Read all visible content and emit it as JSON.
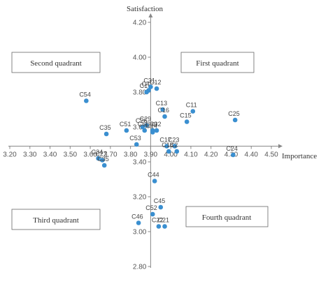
{
  "chart_data": {
    "type": "scatter",
    "title": "",
    "xlabel": "Importance",
    "ylabel": "Satisfaction",
    "xlim": [
      3.2,
      4.5
    ],
    "ylim": [
      2.8,
      4.2
    ],
    "x_cross": 3.9,
    "y_cross": 3.49,
    "x_ticks": [
      "3.20",
      "3.30",
      "3.40",
      "3.50",
      "3.60",
      "3.70",
      "3.80",
      "3.90",
      "4.00",
      "4.10",
      "4.20",
      "4.30",
      "4.40",
      "4.50"
    ],
    "y_ticks": [
      "4.20",
      "4.00",
      "3.80",
      "3.60",
      "3.40",
      "3.20",
      "3.00",
      "2.80"
    ],
    "grid": false,
    "point_color": "#3a8fd0",
    "quadrants": [
      {
        "label": "First quadrant"
      },
      {
        "label": "Second quadrant"
      },
      {
        "label": "Third quadrant"
      },
      {
        "label": "Fourth quadrant"
      }
    ],
    "points": [
      {
        "label": "C54",
        "x": 3.58,
        "y": 3.75
      },
      {
        "label": "C31",
        "x": 3.9,
        "y": 3.83
      },
      {
        "label": "C12",
        "x": 3.93,
        "y": 3.82
      },
      {
        "label": "C4",
        "x": 3.89,
        "y": 3.81
      },
      {
        "label": "C1",
        "x": 3.88,
        "y": 3.8
      },
      {
        "label": "C13",
        "x": 3.96,
        "y": 3.7
      },
      {
        "label": "C16",
        "x": 3.97,
        "y": 3.66
      },
      {
        "label": "C11",
        "x": 4.11,
        "y": 3.69
      },
      {
        "label": "C15",
        "x": 4.08,
        "y": 3.63
      },
      {
        "label": "C25",
        "x": 4.32,
        "y": 3.64
      },
      {
        "label": "C35",
        "x": 3.68,
        "y": 3.56
      },
      {
        "label": "C51",
        "x": 3.78,
        "y": 3.58
      },
      {
        "label": "C26",
        "x": 3.86,
        "y": 3.6
      },
      {
        "label": "C29",
        "x": 3.88,
        "y": 3.61
      },
      {
        "label": "C30",
        "x": 3.91,
        "y": 3.58
      },
      {
        "label": "C6",
        "x": 3.87,
        "y": 3.58
      },
      {
        "label": "C14",
        "x": 3.91,
        "y": 3.57
      },
      {
        "label": "C32",
        "x": 3.93,
        "y": 3.58
      },
      {
        "label": "C53",
        "x": 3.83,
        "y": 3.5
      },
      {
        "label": "C17",
        "x": 3.98,
        "y": 3.49
      },
      {
        "label": "C23",
        "x": 4.02,
        "y": 3.49
      },
      {
        "label": "C18",
        "x": 3.99,
        "y": 3.46
      },
      {
        "label": "C2",
        "x": 4.03,
        "y": 3.46
      },
      {
        "label": "C24",
        "x": 4.31,
        "y": 3.44
      },
      {
        "label": "C34",
        "x": 3.64,
        "y": 3.42
      },
      {
        "label": "C27",
        "x": 3.66,
        "y": 3.41
      },
      {
        "label": "C35",
        "x": 3.67,
        "y": 3.38
      },
      {
        "label": "C44",
        "x": 3.92,
        "y": 3.29
      },
      {
        "label": "C45",
        "x": 3.95,
        "y": 3.14
      },
      {
        "label": "C52",
        "x": 3.91,
        "y": 3.1
      },
      {
        "label": "C46",
        "x": 3.84,
        "y": 3.05
      },
      {
        "label": "C22",
        "x": 3.94,
        "y": 3.03
      },
      {
        "label": "C21",
        "x": 3.97,
        "y": 3.03
      }
    ]
  }
}
